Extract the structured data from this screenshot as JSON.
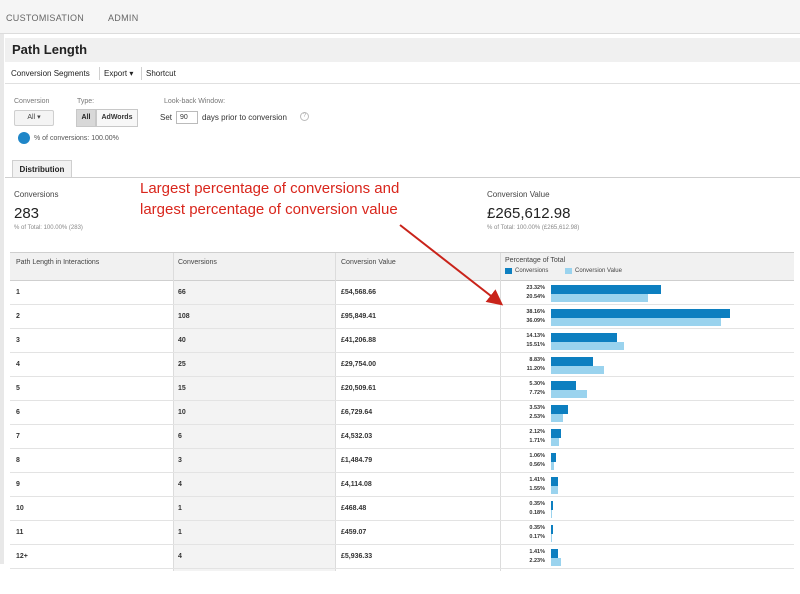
{
  "topnav": {
    "customisation": "CUSTOMISATION",
    "admin": "ADMIN"
  },
  "page": {
    "title": "Path Length"
  },
  "toolbar": {
    "conversion_segments": "Conversion Segments",
    "export": "Export ▾",
    "shortcut": "Shortcut"
  },
  "controls": {
    "conversion_label": "Conversion",
    "conversion_value": "All ▾",
    "type_label": "Type:",
    "type_all": "All",
    "type_adwords": "AdWords",
    "lookback_label": "Look-back Window:",
    "set_text": "Set",
    "days_value": "90",
    "days_text": "days prior to conversion",
    "help_glyph": "?",
    "pct_conversions": "% of conversions: 100.00%"
  },
  "tab": {
    "distribution": "Distribution"
  },
  "summary": {
    "conversions_label": "Conversions",
    "conversions_value": "283",
    "conversions_sub": "% of Total: 100.00% (283)",
    "value_label": "Conversion Value",
    "value_value": "£265,612.98",
    "value_sub": "% of Total: 100.00% (£265,612.98)"
  },
  "annotation": {
    "line1": "Largest percentage of conversions and",
    "line2": "largest percentage of conversion value",
    "color": "#d9261c"
  },
  "table": {
    "headers": {
      "path": "Path Length in Interactions",
      "conversions": "Conversions",
      "value": "Conversion Value",
      "percentage": "Percentage of Total"
    },
    "legend": {
      "conversions": "Conversions",
      "value": "Conversion Value",
      "conversions_color": "#0d7fc0",
      "value_color": "#9ad3ee"
    },
    "rows": [
      {
        "path": "1",
        "conversions": "66",
        "value": "£54,568.66",
        "pct_conv": "23.32%",
        "pct_value": "20.54%",
        "conv_frac": 0.2332,
        "value_frac": 0.2054
      },
      {
        "path": "2",
        "conversions": "108",
        "value": "£95,849.41",
        "pct_conv": "38.16%",
        "pct_value": "36.09%",
        "conv_frac": 0.3816,
        "value_frac": 0.3609
      },
      {
        "path": "3",
        "conversions": "40",
        "value": "£41,206.88",
        "pct_conv": "14.13%",
        "pct_value": "15.51%",
        "conv_frac": 0.1413,
        "value_frac": 0.1551
      },
      {
        "path": "4",
        "conversions": "25",
        "value": "£29,754.00",
        "pct_conv": "8.83%",
        "pct_value": "11.20%",
        "conv_frac": 0.0883,
        "value_frac": 0.112
      },
      {
        "path": "5",
        "conversions": "15",
        "value": "£20,509.61",
        "pct_conv": "5.30%",
        "pct_value": "7.72%",
        "conv_frac": 0.053,
        "value_frac": 0.0772
      },
      {
        "path": "6",
        "conversions": "10",
        "value": "£6,729.64",
        "pct_conv": "3.53%",
        "pct_value": "2.53%",
        "conv_frac": 0.0353,
        "value_frac": 0.0253
      },
      {
        "path": "7",
        "conversions": "6",
        "value": "£4,532.03",
        "pct_conv": "2.12%",
        "pct_value": "1.71%",
        "conv_frac": 0.0212,
        "value_frac": 0.0171
      },
      {
        "path": "8",
        "conversions": "3",
        "value": "£1,484.79",
        "pct_conv": "1.06%",
        "pct_value": "0.56%",
        "conv_frac": 0.0106,
        "value_frac": 0.0056
      },
      {
        "path": "9",
        "conversions": "4",
        "value": "£4,114.08",
        "pct_conv": "1.41%",
        "pct_value": "1.55%",
        "conv_frac": 0.0141,
        "value_frac": 0.0155
      },
      {
        "path": "10",
        "conversions": "1",
        "value": "£468.48",
        "pct_conv": "0.35%",
        "pct_value": "0.18%",
        "conv_frac": 0.0035,
        "value_frac": 0.0018
      },
      {
        "path": "11",
        "conversions": "1",
        "value": "£459.07",
        "pct_conv": "0.35%",
        "pct_value": "0.17%",
        "conv_frac": 0.0035,
        "value_frac": 0.0017
      },
      {
        "path": "12+",
        "conversions": "4",
        "value": "£5,936.33",
        "pct_conv": "1.41%",
        "pct_value": "2.23%",
        "conv_frac": 0.0141,
        "value_frac": 0.0223
      }
    ]
  }
}
